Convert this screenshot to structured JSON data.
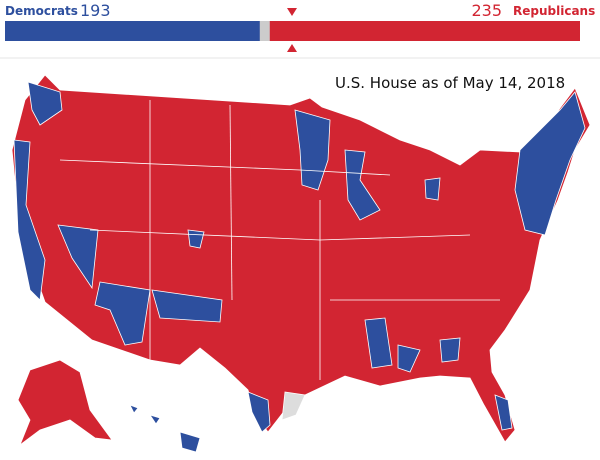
{
  "header": {
    "left": {
      "label": "Democrats",
      "seats": 193
    },
    "right": {
      "seats": 235,
      "label": "Republicans"
    }
  },
  "map": {
    "title": "U.S. House as of May 14, 2018"
  }
}
